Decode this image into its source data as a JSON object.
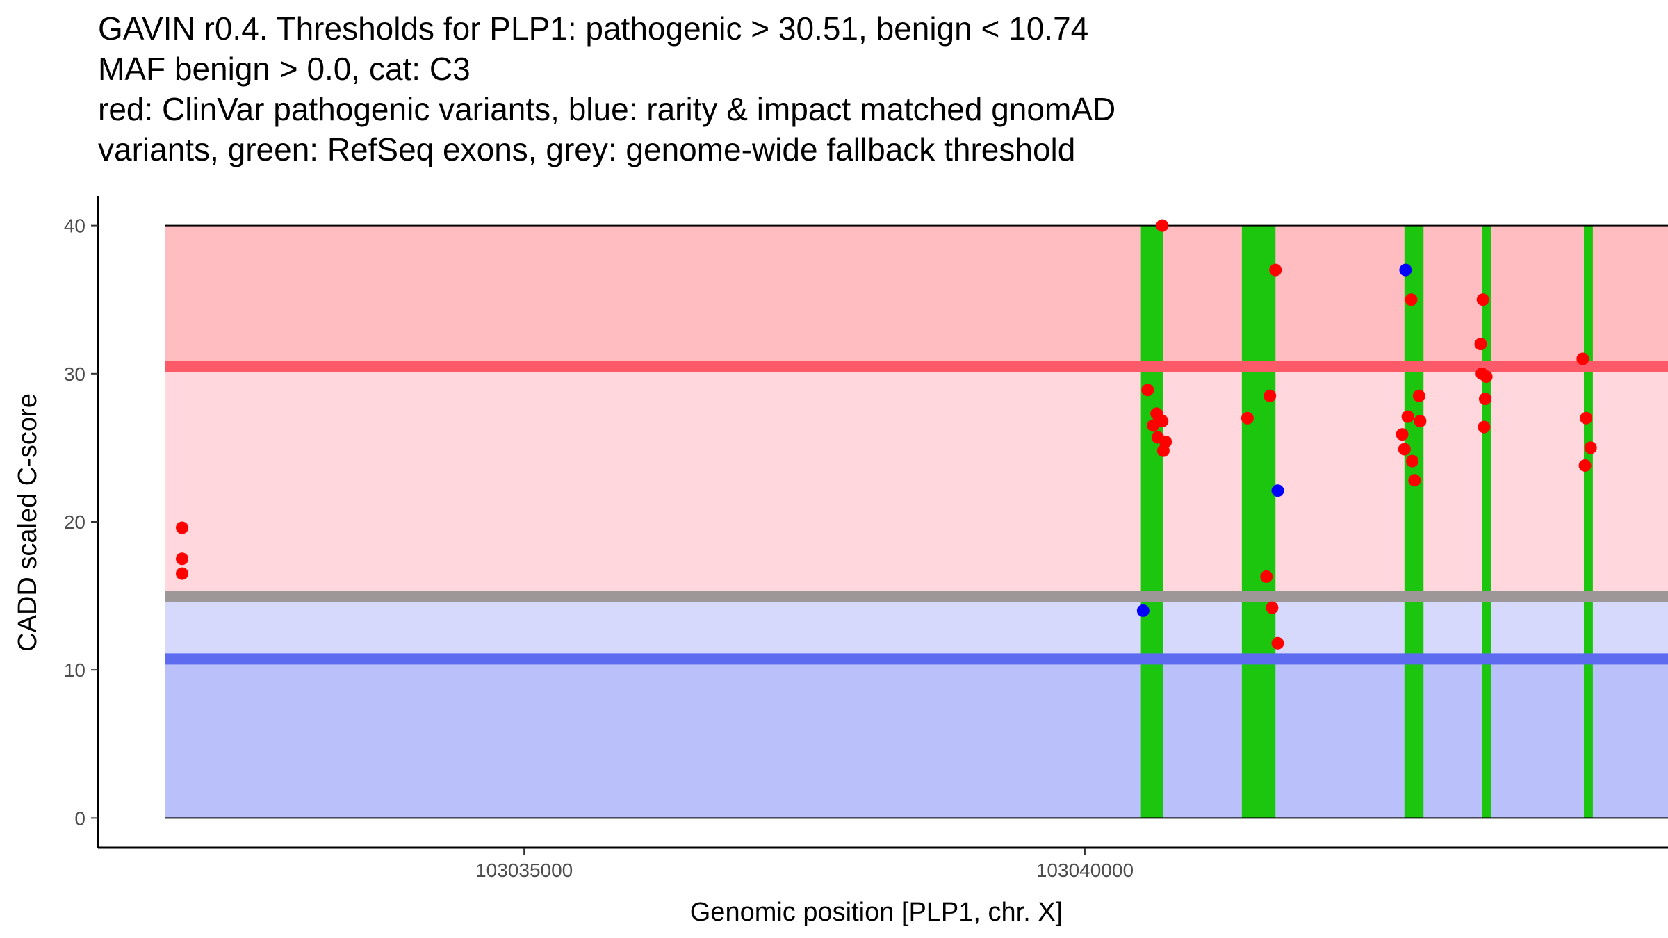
{
  "title_lines": [
    "GAVIN r0.4. Thresholds for PLP1: pathogenic > 30.51, benign < 10.74",
    "MAF benign > 0.0, cat: C3",
    "red: ClinVar pathogenic variants, blue: rarity & impact matched gnomAD",
    "variants, green: RefSeq exons, grey: genome-wide fallback threshold"
  ],
  "chart_data": {
    "type": "scatter",
    "xlabel": "Genomic position [PLP1, chr. X]",
    "ylabel": "CADD scaled C-score",
    "xlim": [
      103031200,
      103045200
    ],
    "ylim": [
      -2,
      42
    ],
    "x_ticks": [
      103035000,
      103040000
    ],
    "x_tick_labels": [
      "103035000",
      "103040000"
    ],
    "y_ticks": [
      0,
      10,
      20,
      30,
      40
    ],
    "y_tick_labels": [
      "0",
      "10",
      "20",
      "30",
      "40"
    ],
    "grid": false,
    "data_x_range": [
      103031800,
      103045200
    ],
    "score_range": [
      0,
      40
    ],
    "thresholds": {
      "pathogenic": 30.51,
      "benign": 10.74,
      "genome_wide_fallback": 14.94
    },
    "regions": [
      {
        "name": "pathogenic zone",
        "from": 30.51,
        "to": 40,
        "color": "#ffbcc1"
      },
      {
        "name": "likely pathogenic zone",
        "from": 14.94,
        "to": 30.51,
        "color": "#ffd7dc"
      },
      {
        "name": "likely benign zone",
        "from": 10.74,
        "to": 14.94,
        "color": "#d6d9fb"
      },
      {
        "name": "benign zone",
        "from": 0,
        "to": 10.74,
        "color": "#bac0fa"
      }
    ],
    "threshold_lines": [
      {
        "name": "pathogenic threshold",
        "value": 30.51,
        "color": "#fc5a68"
      },
      {
        "name": "genome-wide fallback threshold",
        "value": 14.94,
        "color": "#9e9797"
      },
      {
        "name": "benign threshold",
        "value": 10.74,
        "color": "#5c6bf0"
      }
    ],
    "exons": [
      {
        "start": 103040500,
        "end": 103040700
      },
      {
        "start": 103041400,
        "end": 103041700
      },
      {
        "start": 103042850,
        "end": 103043020
      },
      {
        "start": 103043540,
        "end": 103043620
      },
      {
        "start": 103044450,
        "end": 103044530
      }
    ],
    "series": [
      {
        "name": "ClinVar pathogenic variants",
        "color": "#ff0000",
        "points": [
          [
            103031950,
            19.6
          ],
          [
            103031950,
            17.5
          ],
          [
            103031950,
            16.5
          ],
          [
            103040560,
            28.9
          ],
          [
            103040610,
            26.5
          ],
          [
            103040640,
            27.3
          ],
          [
            103040650,
            25.7
          ],
          [
            103040690,
            26.8
          ],
          [
            103040720,
            25.4
          ],
          [
            103040700,
            24.8
          ],
          [
            103040690,
            40.0
          ],
          [
            103041450,
            27.0
          ],
          [
            103041620,
            16.3
          ],
          [
            103041650,
            28.5
          ],
          [
            103041670,
            14.2
          ],
          [
            103041700,
            37.0
          ],
          [
            103041720,
            11.8
          ],
          [
            103042830,
            25.9
          ],
          [
            103042850,
            24.9
          ],
          [
            103042880,
            27.1
          ],
          [
            103042910,
            35.0
          ],
          [
            103042920,
            24.1
          ],
          [
            103042940,
            22.8
          ],
          [
            103042980,
            28.5
          ],
          [
            103042990,
            26.8
          ],
          [
            103043530,
            32.0
          ],
          [
            103043540,
            30.0
          ],
          [
            103043550,
            35.0
          ],
          [
            103043560,
            26.4
          ],
          [
            103043570,
            28.3
          ],
          [
            103043580,
            29.8
          ],
          [
            103044440,
            31.0
          ],
          [
            103044460,
            23.8
          ],
          [
            103044470,
            27.0
          ],
          [
            103044510,
            25.0
          ]
        ]
      },
      {
        "name": "rarity & impact matched gnomAD variants",
        "color": "#0000ff",
        "points": [
          [
            103040520,
            14.0
          ],
          [
            103041720,
            22.1
          ],
          [
            103042860,
            37.0
          ]
        ]
      }
    ]
  }
}
